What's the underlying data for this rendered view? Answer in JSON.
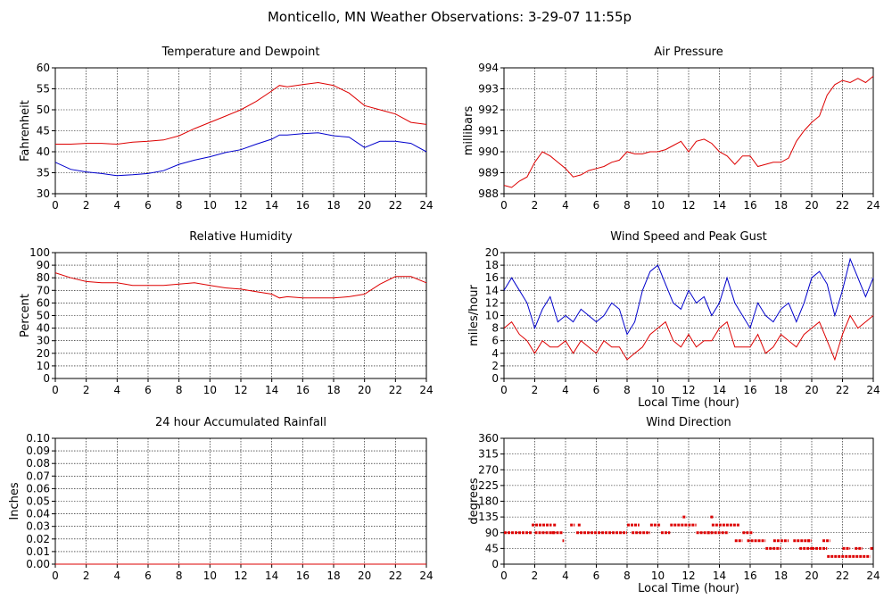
{
  "page_title": "Monticello, MN Weather Observations: 3-29-07 11:55p",
  "colors": {
    "red": "#dd0000",
    "blue": "#0000cc",
    "grid": "#000000"
  },
  "chart_data": [
    {
      "id": "temperature",
      "type": "line",
      "title": "Temperature and Dewpoint",
      "xlabel": "",
      "ylabel": "Fahrenheit",
      "xlim": [
        0,
        24
      ],
      "ylim": [
        30,
        60
      ],
      "xticks": [
        "0",
        "2",
        "4",
        "6",
        "8",
        "10",
        "12",
        "14",
        "16",
        "18",
        "20",
        "22",
        "24"
      ],
      "yticks": [
        "30",
        "35",
        "40",
        "45",
        "50",
        "55",
        "60"
      ],
      "grid": true,
      "x": [
        0,
        1,
        2,
        3,
        4,
        5,
        6,
        7,
        8,
        9,
        10,
        11,
        12,
        13,
        14,
        14.5,
        15,
        16,
        17,
        18,
        19,
        20,
        21,
        22,
        23,
        24
      ],
      "series": [
        {
          "color": "#dd0000",
          "values": [
            41.8,
            41.8,
            42,
            42,
            41.8,
            42.3,
            42.5,
            42.8,
            43.8,
            45.5,
            47,
            48.5,
            50,
            52,
            54.5,
            55.8,
            55.5,
            56,
            56.5,
            55.8,
            54,
            51,
            50,
            49,
            47,
            46.5
          ]
        },
        {
          "color": "#0000cc",
          "values": [
            37.5,
            35.8,
            35.2,
            34.8,
            34.3,
            34.5,
            34.8,
            35.5,
            37,
            38,
            38.8,
            39.8,
            40.5,
            41.8,
            43,
            44,
            44,
            44.3,
            44.5,
            43.8,
            43.5,
            41,
            42.5,
            42.5,
            42,
            40
          ]
        }
      ]
    },
    {
      "id": "pressure",
      "type": "line",
      "title": "Air Pressure",
      "xlabel": "",
      "ylabel": "millibars",
      "xlim": [
        0,
        24
      ],
      "ylim": [
        988,
        994
      ],
      "xticks": [
        "0",
        "2",
        "4",
        "6",
        "8",
        "10",
        "12",
        "14",
        "16",
        "18",
        "20",
        "22",
        "24"
      ],
      "yticks": [
        "988",
        "989",
        "990",
        "991",
        "992",
        "993",
        "994"
      ],
      "grid": true,
      "x": [
        0,
        0.5,
        1,
        1.5,
        2,
        2.5,
        3,
        3.5,
        4,
        4.5,
        5,
        5.5,
        6,
        6.5,
        7,
        7.5,
        8,
        8.5,
        9,
        9.5,
        10,
        10.5,
        11,
        11.5,
        12,
        12.5,
        13,
        13.5,
        14,
        14.5,
        15,
        15.5,
        16,
        16.5,
        17,
        17.5,
        18,
        18.5,
        19,
        19.5,
        20,
        20.5,
        21,
        21.5,
        22,
        22.5,
        23,
        23.5,
        24
      ],
      "series": [
        {
          "color": "#dd0000",
          "values": [
            988.4,
            988.3,
            988.6,
            988.8,
            989.5,
            990,
            989.8,
            989.5,
            989.2,
            988.8,
            988.9,
            989.1,
            989.2,
            989.3,
            989.5,
            989.6,
            990,
            989.9,
            989.9,
            990,
            990,
            990.1,
            990.3,
            990.5,
            990,
            990.5,
            990.6,
            990.4,
            990,
            989.8,
            989.4,
            989.8,
            989.8,
            989.3,
            989.4,
            989.5,
            989.5,
            989.7,
            990.5,
            991,
            991.4,
            991.7,
            992.7,
            993.2,
            993.4,
            993.3,
            993.5,
            993.3,
            993.6
          ]
        }
      ]
    },
    {
      "id": "humidity",
      "type": "line",
      "title": "Relative Humidity",
      "xlabel": "",
      "ylabel": "Percent",
      "xlim": [
        0,
        24
      ],
      "ylim": [
        0,
        100
      ],
      "xticks": [
        "0",
        "2",
        "4",
        "6",
        "8",
        "10",
        "12",
        "14",
        "16",
        "18",
        "20",
        "22",
        "24"
      ],
      "yticks": [
        "0",
        "10",
        "20",
        "30",
        "40",
        "50",
        "60",
        "70",
        "80",
        "90",
        "100"
      ],
      "grid": true,
      "x": [
        0,
        1,
        2,
        3,
        4,
        5,
        6,
        7,
        8,
        9,
        10,
        11,
        12,
        13,
        14,
        14.5,
        15,
        16,
        17,
        18,
        19,
        20,
        21,
        22,
        23,
        24
      ],
      "series": [
        {
          "color": "#dd0000",
          "values": [
            84,
            80,
            77,
            76,
            76,
            74,
            74,
            74,
            75,
            76,
            74,
            72,
            71,
            69,
            67,
            64,
            65,
            64,
            64,
            64,
            65,
            67,
            75,
            81,
            81,
            76
          ]
        }
      ]
    },
    {
      "id": "wind",
      "type": "line",
      "title": "Wind Speed and Peak Gust",
      "xlabel": "Local Time (hour)",
      "ylabel": "miles/hour",
      "xlim": [
        0,
        24
      ],
      "ylim": [
        0,
        20
      ],
      "xticks": [
        "0",
        "2",
        "4",
        "6",
        "8",
        "10",
        "12",
        "14",
        "16",
        "18",
        "20",
        "22",
        "24"
      ],
      "yticks": [
        "0",
        "2",
        "4",
        "6",
        "8",
        "10",
        "12",
        "14",
        "16",
        "18",
        "20"
      ],
      "grid": true,
      "x": [
        0,
        0.5,
        1,
        1.5,
        2,
        2.5,
        3,
        3.5,
        4,
        4.5,
        5,
        5.5,
        6,
        6.5,
        7,
        7.5,
        8,
        8.5,
        9,
        9.5,
        10,
        10.5,
        11,
        11.5,
        12,
        12.5,
        13,
        13.5,
        14,
        14.5,
        15,
        15.5,
        16,
        16.5,
        17,
        17.5,
        18,
        18.5,
        19,
        19.5,
        20,
        20.5,
        21,
        21.5,
        22,
        22.5,
        23,
        23.5,
        24
      ],
      "series": [
        {
          "color": "#0000cc",
          "values": [
            14,
            16,
            14,
            12,
            8,
            11,
            13,
            9,
            10,
            9,
            11,
            10,
            9,
            10,
            12,
            11,
            7,
            9,
            14,
            17,
            18,
            15,
            12,
            11,
            14,
            12,
            13,
            10,
            12,
            16,
            12,
            10,
            8,
            12,
            10,
            9,
            11,
            12,
            9,
            12,
            16,
            17,
            15,
            10,
            14,
            19,
            16,
            13,
            16
          ]
        },
        {
          "color": "#dd0000",
          "values": [
            8,
            9,
            7,
            6,
            4,
            6,
            5,
            5,
            6,
            4,
            6,
            5,
            4,
            6,
            5,
            5,
            3,
            4,
            5,
            7,
            8,
            9,
            6,
            5,
            7,
            5,
            6,
            6,
            8,
            9,
            5,
            5,
            5,
            7,
            4,
            5,
            7,
            6,
            5,
            7,
            8,
            9,
            6,
            3,
            7,
            10,
            8,
            9,
            10
          ]
        }
      ]
    },
    {
      "id": "rainfall",
      "type": "line",
      "title": "24 hour Accumulated Rainfall",
      "xlabel": "",
      "ylabel": "Inches",
      "xlim": [
        0,
        24
      ],
      "ylim": [
        0,
        0.1
      ],
      "xticks": [
        "0",
        "2",
        "4",
        "6",
        "8",
        "10",
        "12",
        "14",
        "16",
        "18",
        "20",
        "22",
        "24"
      ],
      "yticks": [
        "0.00",
        "0.01",
        "0.02",
        "0.03",
        "0.04",
        "0.05",
        "0.06",
        "0.07",
        "0.08",
        "0.09",
        "0.10"
      ],
      "grid": true,
      "x": [
        0,
        24
      ],
      "series": [
        {
          "color": "#dd0000",
          "values": [
            0,
            0
          ]
        }
      ]
    },
    {
      "id": "direction",
      "type": "scatter",
      "title": "Wind Direction",
      "xlabel": "Local Time (hour)",
      "ylabel": "degrees",
      "xlim": [
        0,
        24
      ],
      "ylim": [
        0,
        360
      ],
      "xticks": [
        "0",
        "2",
        "4",
        "6",
        "8",
        "10",
        "12",
        "14",
        "16",
        "18",
        "20",
        "22",
        "24"
      ],
      "yticks": [
        "0",
        "45",
        "90",
        "135",
        "180",
        "225",
        "270",
        "315",
        "360"
      ],
      "grid": true,
      "series": [
        {
          "color": "#dd0000",
          "segments": [
            [
              0,
              1.8,
              90
            ],
            [
              1.8,
              3.1,
              112
            ],
            [
              2,
              3.8,
              90
            ],
            [
              3.2,
              3.4,
              112
            ],
            [
              3.8,
              3.9,
              67
            ],
            [
              4.3,
              4.6,
              112
            ],
            [
              4.8,
              5,
              112
            ],
            [
              4.7,
              8,
              90
            ],
            [
              8,
              8.8,
              112
            ],
            [
              8.3,
              9.5,
              90
            ],
            [
              9.5,
              10.2,
              112
            ],
            [
              10.2,
              10.8,
              90
            ],
            [
              10.8,
              11.5,
              112
            ],
            [
              11.5,
              12.5,
              112
            ],
            [
              12.5,
              13.5,
              90
            ],
            [
              13.5,
              15.3,
              112
            ],
            [
              13.2,
              14.6,
              90
            ],
            [
              15,
              15.5,
              67
            ],
            [
              15.5,
              16.2,
              90
            ],
            [
              15.8,
              17,
              67
            ],
            [
              17,
              18,
              45
            ],
            [
              17.5,
              18.5,
              67
            ],
            [
              18.8,
              20,
              67
            ],
            [
              19.2,
              20,
              45
            ],
            [
              20,
              21,
              45
            ],
            [
              20.7,
              21.2,
              67
            ],
            [
              21,
              23.8,
              22
            ],
            [
              22,
              22.5,
              45
            ],
            [
              22.8,
              23.3,
              45
            ],
            [
              23.8,
              24,
              45
            ]
          ],
          "points": [
            [
              11.7,
              135
            ],
            [
              13.5,
              135
            ],
            [
              19.8,
              67
            ],
            [
              3.2,
              90
            ]
          ]
        }
      ]
    }
  ]
}
